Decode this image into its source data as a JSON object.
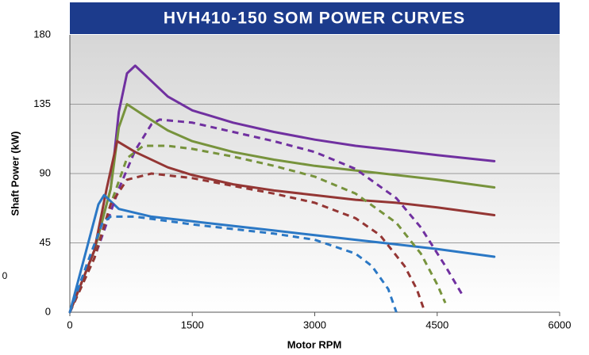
{
  "chart_data": {
    "type": "line",
    "title": "HVH410-150 SOM POWER CURVES",
    "x_label": "Motor RPM",
    "y_label": "Shaft Power (kW)",
    "annotations": [
      "0"
    ],
    "xlim": [
      0,
      6000
    ],
    "xticks": [
      0,
      1500,
      3000,
      4500,
      6000
    ],
    "ylim": [
      0,
      180
    ],
    "yticks": [
      0,
      45,
      90,
      135,
      180
    ],
    "grid": true,
    "series": [
      {
        "color": "#7030a0",
        "dashed": false,
        "x": [
          0,
          300,
          500,
          600,
          700,
          800,
          1000,
          1200,
          1500,
          2000,
          2500,
          3000,
          3500,
          4000,
          4500,
          5200
        ],
        "values": [
          0,
          40,
          80,
          130,
          155,
          160,
          150,
          140,
          131,
          123,
          117,
          112,
          108,
          105,
          102,
          98
        ]
      },
      {
        "color": "#77933c",
        "dashed": false,
        "x": [
          0,
          300,
          500,
          600,
          700,
          900,
          1200,
          1500,
          2000,
          2500,
          3000,
          3500,
          4000,
          4500,
          5200
        ],
        "values": [
          0,
          40,
          80,
          120,
          135,
          128,
          118,
          111,
          104,
          99,
          95,
          92,
          89,
          86,
          81
        ]
      },
      {
        "color": "#943634",
        "dashed": false,
        "x": [
          0,
          300,
          450,
          580,
          800,
          1200,
          1500,
          2000,
          2500,
          3000,
          3500,
          4000,
          4500,
          5200
        ],
        "values": [
          0,
          40,
          80,
          111,
          104,
          94,
          89,
          83,
          79,
          76,
          73,
          71,
          68,
          63
        ]
      },
      {
        "color": "#2b78c5",
        "dashed": false,
        "x": [
          0,
          200,
          350,
          420,
          600,
          1000,
          1500,
          2000,
          2500,
          3000,
          3500,
          4000,
          4500,
          5200
        ],
        "values": [
          0,
          40,
          70,
          76,
          67,
          62,
          59,
          56,
          53,
          50,
          47,
          44,
          41,
          36
        ]
      },
      {
        "color": "#7030a0",
        "dashed": true,
        "x": [
          0,
          300,
          600,
          800,
          1000,
          1100,
          1500,
          2000,
          2500,
          3000,
          3500,
          4000,
          4300,
          4600,
          4800
        ],
        "values": [
          0,
          35,
          80,
          105,
          122,
          125,
          123,
          117,
          111,
          104,
          93,
          74,
          55,
          30,
          12
        ]
      },
      {
        "color": "#77933c",
        "dashed": true,
        "x": [
          0,
          300,
          500,
          700,
          900,
          1200,
          1500,
          2000,
          2500,
          3000,
          3500,
          4000,
          4300,
          4500,
          4600
        ],
        "values": [
          0,
          35,
          70,
          100,
          108,
          108,
          106,
          101,
          95,
          88,
          77,
          58,
          38,
          18,
          6
        ]
      },
      {
        "color": "#943634",
        "dashed": true,
        "x": [
          0,
          300,
          500,
          700,
          1000,
          1500,
          2000,
          2500,
          3000,
          3500,
          3800,
          4100,
          4250,
          4350
        ],
        "values": [
          0,
          35,
          70,
          86,
          90,
          87,
          82,
          77,
          71,
          61,
          50,
          30,
          15,
          0
        ]
      },
      {
        "color": "#2b78c5",
        "dashed": true,
        "x": [
          0,
          200,
          400,
          500,
          800,
          1500,
          2000,
          2500,
          3000,
          3500,
          3700,
          3900,
          4000
        ],
        "values": [
          0,
          30,
          58,
          62,
          62,
          57,
          54,
          51,
          47,
          38,
          30,
          15,
          0
        ]
      }
    ]
  }
}
